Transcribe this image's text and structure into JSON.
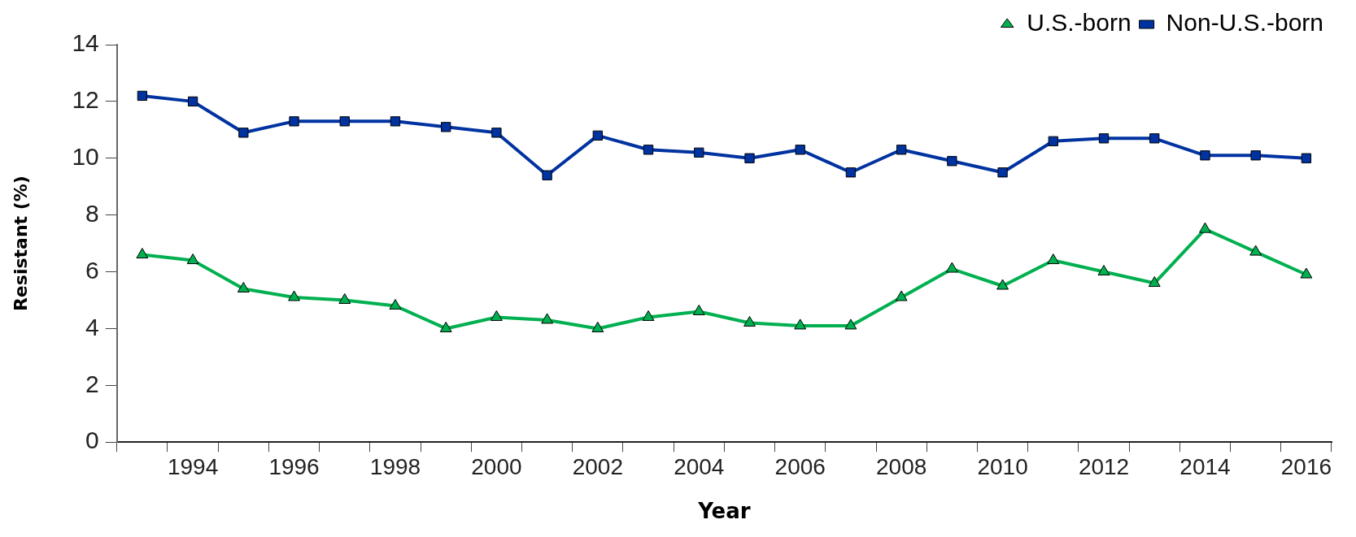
{
  "chart_data": {
    "type": "line",
    "xlabel": "Year",
    "ylabel": "Resistant (%)",
    "categories": [
      null,
      "1994",
      null,
      "1996",
      null,
      "1998",
      null,
      "2000",
      null,
      "2002",
      null,
      "2004",
      null,
      "2006",
      null,
      "2008",
      null,
      "2010",
      null,
      "2012",
      null,
      "2014",
      null,
      "2016"
    ],
    "series": [
      {
        "name": "U.S.-born",
        "color": "#00b050",
        "marker": "triangle",
        "values": [
          6.6,
          6.4,
          5.4,
          5.1,
          5.0,
          4.8,
          4.0,
          4.4,
          4.3,
          4.0,
          4.4,
          4.6,
          4.2,
          4.1,
          4.1,
          5.1,
          6.1,
          5.5,
          6.4,
          6.0,
          5.6,
          7.5,
          6.7,
          5.9
        ]
      },
      {
        "name": "Non-U.S.-born",
        "color": "#0033a0",
        "marker": "square",
        "values": [
          12.2,
          12.0,
          10.9,
          11.3,
          11.3,
          11.3,
          11.1,
          10.9,
          9.4,
          10.8,
          10.3,
          10.2,
          10.0,
          10.3,
          9.5,
          10.3,
          9.9,
          9.5,
          10.6,
          10.7,
          10.7,
          10.1,
          10.1,
          10.0
        ]
      }
    ],
    "ylim": [
      0,
      14
    ],
    "yticks": [
      0,
      2,
      4,
      6,
      8,
      10,
      12,
      14
    ],
    "grid": false,
    "legend": "top right",
    "line_style": "solid"
  }
}
